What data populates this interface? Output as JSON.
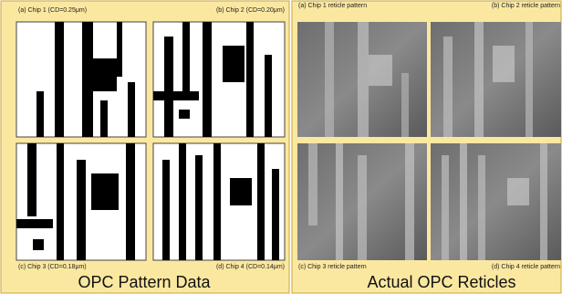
{
  "left_panel": {
    "labels": [
      "(a) Chip 1 (CD=0.25μm)",
      "(b) Chip 2 (CD=0.20μm)",
      "(c) Chip 3 (CD=0.18μm)",
      "(d) Chip 4 (CD=0.14μm)"
    ],
    "caption": "OPC Pattern Data"
  },
  "right_panel": {
    "labels": [
      "(a) Chip 1 reticle pattern",
      "(b) Chip 2 reticle pattern",
      "(c) Chip 3 reticle pattern",
      "(d) Chip 4 reticle pattern"
    ],
    "caption": "Actual OPC Reticles"
  }
}
